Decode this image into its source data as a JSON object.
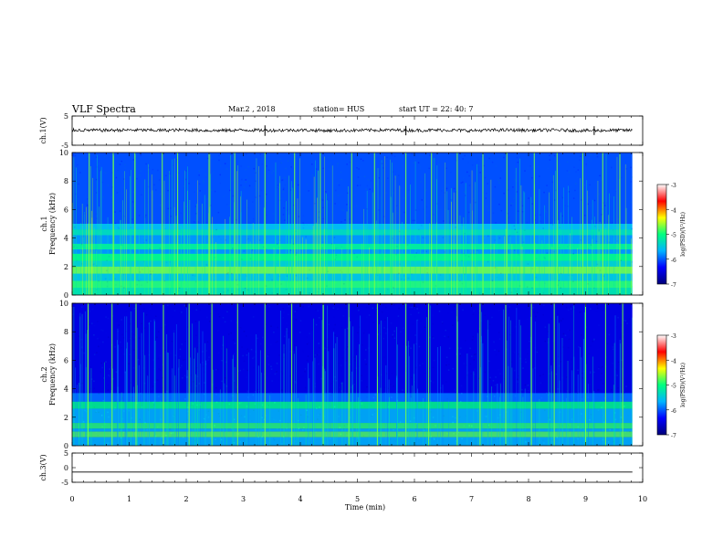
{
  "header": {
    "title": "VLF Spectra",
    "date": "Mar.2 , 2018",
    "station": "station= HUS",
    "start": "start UT = 22: 40: 7"
  },
  "chart_data": [
    {
      "type": "line",
      "panel": "ch1-waveform",
      "ylabel": "ch.1(V)",
      "ylim": [
        -5,
        5
      ],
      "yticks": [
        "5",
        "-5"
      ],
      "series": [
        {
          "x": [
            0,
            0.5,
            1,
            1.5,
            2,
            2.5,
            3,
            3.5,
            4,
            4.5,
            5,
            5.5,
            6,
            6.5,
            7,
            7.5,
            8,
            8.5,
            9,
            9.5,
            9.82
          ],
          "values": [
            0.2,
            0.1,
            0.2,
            0.1,
            0.2,
            0.0,
            0.2,
            0.1,
            0.2,
            0.0,
            0.1,
            0.2,
            0.1,
            0.2,
            0.0,
            0.2,
            0.1,
            0.2,
            0.0,
            0.1,
            0.1
          ]
        }
      ],
      "spikes": [
        {
          "x": 3.38,
          "value": 1.8
        },
        {
          "x": 5.85,
          "value": 1.6
        },
        {
          "x": 9.15,
          "value": 1.5
        }
      ]
    },
    {
      "type": "heatmap",
      "panel": "ch1-spectrogram",
      "ylabel_line1": "ch.1",
      "ylabel_line2": "Frequency (kHz)",
      "ylim": [
        0,
        10
      ],
      "yticks": [
        "0",
        "2",
        "4",
        "6",
        "8",
        "10"
      ],
      "xlim": [
        0,
        9.82
      ],
      "background_level": -5.7,
      "bands": [
        {
          "freq_from": 0.0,
          "freq_to": 0.5,
          "level": -5.2
        },
        {
          "freq_from": 0.5,
          "freq_to": 1.0,
          "level": -4.9
        },
        {
          "freq_from": 1.0,
          "freq_to": 1.5,
          "level": -5.5
        },
        {
          "freq_from": 1.5,
          "freq_to": 2.0,
          "level": -4.7
        },
        {
          "freq_from": 2.0,
          "freq_to": 2.4,
          "level": -5.4
        },
        {
          "freq_from": 2.4,
          "freq_to": 2.9,
          "level": -5.0
        },
        {
          "freq_from": 2.9,
          "freq_to": 3.2,
          "level": -5.8
        },
        {
          "freq_from": 3.2,
          "freq_to": 3.6,
          "level": -5.1
        },
        {
          "freq_from": 3.6,
          "freq_to": 4.2,
          "level": -5.8
        },
        {
          "freq_from": 4.2,
          "freq_to": 4.6,
          "level": -5.3
        },
        {
          "freq_from": 4.6,
          "freq_to": 5.0,
          "level": -5.6
        },
        {
          "freq_from": 5.0,
          "freq_to": 10.0,
          "level": -6.1
        }
      ],
      "impulses": [
        0.3,
        0.72,
        1.1,
        1.58,
        1.85,
        2.4,
        2.85,
        3.38,
        3.9,
        4.35,
        4.9,
        5.3,
        5.85,
        6.3,
        6.75,
        7.2,
        7.62,
        8.1,
        8.5,
        8.95,
        9.3,
        9.6
      ]
    },
    {
      "type": "heatmap",
      "panel": "ch2-spectrogram",
      "ylabel_line1": "ch.2",
      "ylabel_line2": "Frequency (kHz)",
      "ylim": [
        0,
        10
      ],
      "yticks": [
        "0",
        "2",
        "4",
        "6",
        "8",
        "10"
      ],
      "xlim": [
        0,
        9.82
      ],
      "background_level": -6.3,
      "bands": [
        {
          "freq_from": 0.0,
          "freq_to": 0.6,
          "level": -5.6
        },
        {
          "freq_from": 0.6,
          "freq_to": 1.0,
          "level": -4.8
        },
        {
          "freq_from": 1.0,
          "freq_to": 1.2,
          "level": -5.6
        },
        {
          "freq_from": 1.2,
          "freq_to": 1.6,
          "level": -4.9
        },
        {
          "freq_from": 1.6,
          "freq_to": 2.6,
          "level": -5.6
        },
        {
          "freq_from": 2.6,
          "freq_to": 3.1,
          "level": -5.0
        },
        {
          "freq_from": 3.1,
          "freq_to": 3.7,
          "level": -5.9
        },
        {
          "freq_from": 3.7,
          "freq_to": 10.0,
          "level": -6.5
        }
      ],
      "impulses": [
        0.28,
        0.7,
        1.12,
        1.6,
        2.05,
        2.45,
        2.9,
        3.38,
        3.85,
        4.4,
        4.85,
        5.35,
        5.85,
        6.25,
        6.75,
        7.15,
        7.6,
        8.05,
        8.45,
        9.0,
        9.35,
        9.65
      ]
    },
    {
      "type": "line",
      "panel": "ch3-waveform",
      "ylabel": "ch.3(V)",
      "ylim": [
        -5,
        5
      ],
      "yticks": [
        "5",
        "0",
        "-5"
      ],
      "xlabel": "Time (min)",
      "xlim": [
        0,
        10
      ],
      "xticks": [
        "0",
        "1",
        "2",
        "3",
        "4",
        "5",
        "6",
        "7",
        "8",
        "9",
        "10"
      ],
      "series": [
        {
          "x": [
            0,
            9.82
          ],
          "values": [
            -1.5,
            -1.5
          ]
        }
      ]
    }
  ],
  "colorbar": {
    "label": "log(PSD)(V²/Hz)",
    "range": [
      -7,
      -3
    ],
    "ticks": [
      "-3",
      "-4",
      "-5",
      "-6",
      "-7"
    ],
    "colors": [
      "#00007a",
      "#0000ff",
      "#00b4ff",
      "#00ff7f",
      "#ffff00",
      "#ff0000",
      "#ffffff"
    ]
  }
}
